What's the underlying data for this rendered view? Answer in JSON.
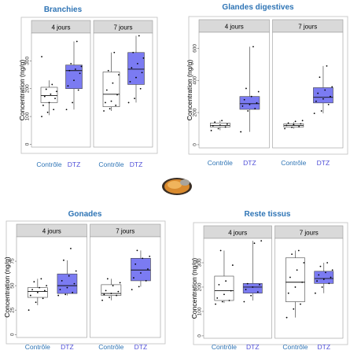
{
  "colors": {
    "title": "#2e74b5",
    "control_label": "#2e74b5",
    "dtz_label": "#4f4fd8",
    "dtz_fill": "#7b7bf2",
    "control_fill": "#ffffff",
    "strip": "#d9d9d9",
    "panel_border": "#bfbfbf"
  },
  "photo": {
    "icon": "mussel-photo"
  },
  "chart_data": [
    {
      "type": "box",
      "title": "Branchies",
      "ylabel": "Concentration (ng/g)",
      "facets": [
        "4 jours",
        "7 jours"
      ],
      "categories": [
        "Contrôle",
        "DTZ"
      ],
      "ylim": [
        -10,
        400
      ],
      "yticks": [
        0,
        100,
        200,
        300
      ],
      "boxes": [
        {
          "facet": "4 jours",
          "group": "Contrôle",
          "min": 105,
          "q1": 150,
          "median": 175,
          "q3": 205,
          "max": 230,
          "points": [
            100,
            115,
            125,
            140,
            150,
            165,
            172,
            180,
            190,
            198,
            215,
            315
          ]
        },
        {
          "facet": "4 jours",
          "group": "DTZ",
          "min": 125,
          "q1": 200,
          "median": 265,
          "q3": 285,
          "max": 370,
          "points": [
            125,
            150,
            195,
            210,
            230,
            255,
            265,
            270,
            280,
            290,
            370
          ]
        },
        {
          "facet": "7 jours",
          "group": "Contrôle",
          "min": 120,
          "q1": 135,
          "median": 180,
          "q3": 260,
          "max": 330,
          "points": [
            120,
            128,
            140,
            150,
            155,
            178,
            195,
            220,
            250,
            265,
            330
          ]
        },
        {
          "facet": "7 jours",
          "group": "DTZ",
          "min": 150,
          "q1": 215,
          "median": 270,
          "q3": 330,
          "max": 390,
          "points": [
            150,
            165,
            200,
            225,
            240,
            258,
            275,
            290,
            310,
            330,
            390
          ]
        }
      ]
    },
    {
      "type": "box",
      "title": "Glandes digestives",
      "ylabel": "Concentration (ng/g)",
      "facets": [
        "4 jours",
        "7 jours"
      ],
      "categories": [
        "Contrôle",
        "DTZ"
      ],
      "ylim": [
        -20,
        700
      ],
      "yticks": [
        0,
        200,
        400,
        600
      ],
      "boxes": [
        {
          "facet": "4 jours",
          "group": "Contrôle",
          "min": 90,
          "q1": 110,
          "median": 120,
          "q3": 135,
          "max": 150,
          "points": [
            88,
            100,
            110,
            118,
            122,
            128,
            140,
            150
          ]
        },
        {
          "facet": "4 jours",
          "group": "DTZ",
          "min": 80,
          "q1": 220,
          "median": 255,
          "q3": 300,
          "max": 610,
          "points": [
            80,
            210,
            225,
            240,
            250,
            260,
            280,
            300,
            330,
            350,
            610
          ]
        },
        {
          "facet": "7 jours",
          "group": "Contrôle",
          "min": 100,
          "q1": 110,
          "median": 120,
          "q3": 130,
          "max": 140,
          "points": [
            100,
            108,
            112,
            120,
            125,
            130,
            135,
            145,
            150
          ]
        },
        {
          "facet": "7 jours",
          "group": "DTZ",
          "min": 195,
          "q1": 260,
          "median": 295,
          "q3": 355,
          "max": 490,
          "points": [
            195,
            210,
            250,
            270,
            285,
            300,
            320,
            340,
            360,
            420,
            490
          ]
        }
      ]
    },
    {
      "type": "box",
      "title": "Gonades",
      "ylabel": "Concentration (ng/g)",
      "facets": [
        "4 jours",
        "7 jours"
      ],
      "categories": [
        "Contrôle",
        "DTZ"
      ],
      "ylim": [
        -3,
        100
      ],
      "yticks": [
        0,
        25,
        50,
        75
      ],
      "boxes": [
        {
          "facet": "4 jours",
          "group": "Contrôle",
          "min": 30,
          "q1": 38,
          "median": 44,
          "q3": 48,
          "max": 57,
          "points": [
            25,
            33,
            37,
            40,
            43,
            45,
            46,
            48,
            50,
            54,
            57
          ]
        },
        {
          "facet": "4 jours",
          "group": "DTZ",
          "min": 40,
          "q1": 42,
          "median": 50,
          "q3": 62,
          "max": 76,
          "points": [
            40,
            41,
            43,
            46,
            48,
            52,
            55,
            60,
            65,
            76,
            88
          ]
        },
        {
          "facet": "7 jours",
          "group": "Contrôle",
          "min": 35,
          "q1": 40,
          "median": 42,
          "q3": 51,
          "max": 57,
          "points": [
            35,
            38,
            40,
            41,
            42,
            44,
            45,
            50,
            53,
            57
          ]
        },
        {
          "facet": "7 jours",
          "group": "DTZ",
          "min": 49,
          "q1": 55,
          "median": 66,
          "q3": 78,
          "max": 86,
          "points": [
            46,
            49,
            55,
            58,
            63,
            67,
            72,
            78,
            80,
            86
          ]
        }
      ]
    },
    {
      "type": "box",
      "title": "Reste tissus",
      "ylabel": "Concentration (ng/g)",
      "facets": [
        "4 jours",
        "7 jours"
      ],
      "categories": [
        "Contrôle",
        "DTZ"
      ],
      "ylim": [
        -10,
        400
      ],
      "yticks": [
        0,
        100,
        200,
        300
      ],
      "boxes": [
        {
          "facet": "4 jours",
          "group": "Contrôle",
          "min": 135,
          "q1": 145,
          "median": 185,
          "q3": 245,
          "max": 350,
          "points": [
            130,
            140,
            145,
            155,
            170,
            185,
            210,
            225,
            290,
            350
          ]
        },
        {
          "facet": "4 jours",
          "group": "DTZ",
          "min": 145,
          "q1": 175,
          "median": 200,
          "q3": 215,
          "max": 390,
          "points": [
            140,
            165,
            180,
            190,
            200,
            210,
            214,
            380,
            390
          ]
        },
        {
          "facet": "7 jours",
          "group": "Contrôle",
          "min": 75,
          "q1": 140,
          "median": 220,
          "q3": 320,
          "max": 350,
          "points": [
            75,
            110,
            130,
            175,
            200,
            220,
            240,
            270,
            300,
            335,
            350
          ]
        },
        {
          "facet": "7 jours",
          "group": "DTZ",
          "min": 175,
          "q1": 215,
          "median": 235,
          "q3": 265,
          "max": 300,
          "points": [
            175,
            200,
            215,
            225,
            232,
            240,
            250,
            260,
            270,
            285,
            300
          ]
        }
      ]
    }
  ]
}
